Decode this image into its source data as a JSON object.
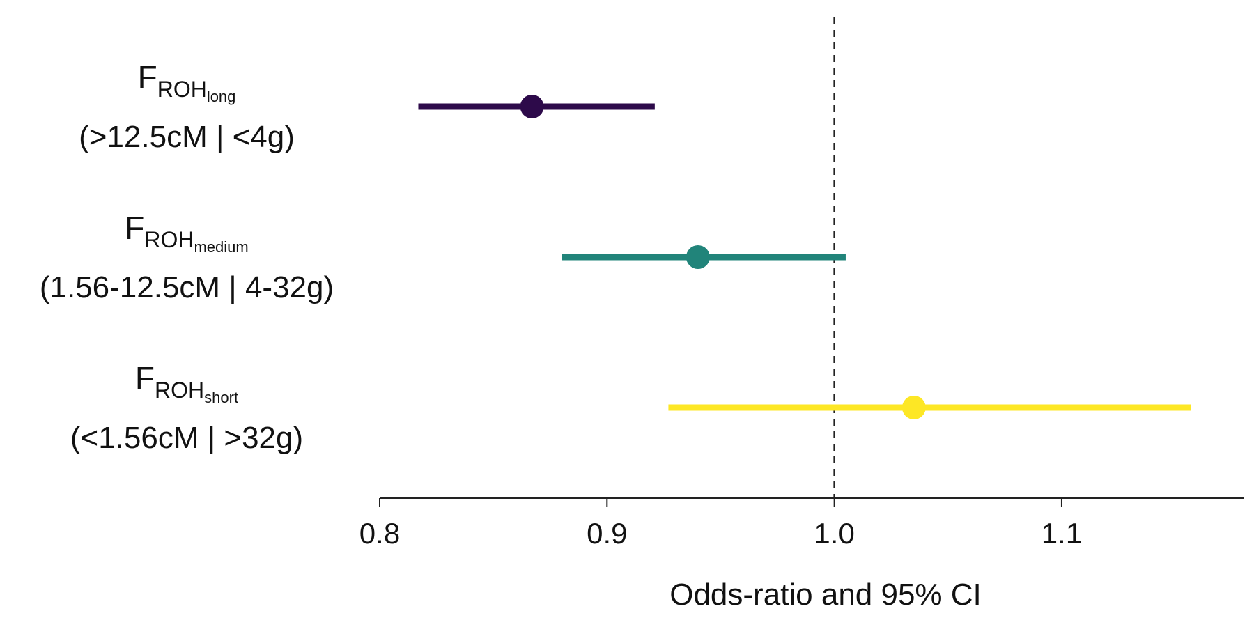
{
  "chart_data": {
    "type": "forest",
    "xlabel": "Odds-ratio and 95% CI",
    "xlim": [
      0.8,
      1.18
    ],
    "xticks": [
      0.8,
      0.9,
      1.0,
      1.1
    ],
    "xtick_labels": [
      "0.8",
      "0.9",
      "1.0",
      "1.1"
    ],
    "reference_line": {
      "x": 1.0,
      "style": "dashed",
      "color": "#222222"
    },
    "rows": [
      {
        "label_main": "F",
        "label_sub": "ROH",
        "label_subsub": "long",
        "label_range": "(>12.5cM | <4g)",
        "estimate": 0.867,
        "ci_low": 0.817,
        "ci_high": 0.921,
        "color": "#2d0a4a"
      },
      {
        "label_main": "F",
        "label_sub": "ROH",
        "label_subsub": "medium",
        "label_range": "(1.56-12.5cM | 4-32g)",
        "estimate": 0.94,
        "ci_low": 0.88,
        "ci_high": 1.005,
        "color": "#21847a"
      },
      {
        "label_main": "F",
        "label_sub": "ROH",
        "label_subsub": "short",
        "label_range": "(<1.56cM | >32g)",
        "estimate": 1.035,
        "ci_low": 0.927,
        "ci_high": 1.157,
        "color": "#fde725"
      }
    ]
  }
}
